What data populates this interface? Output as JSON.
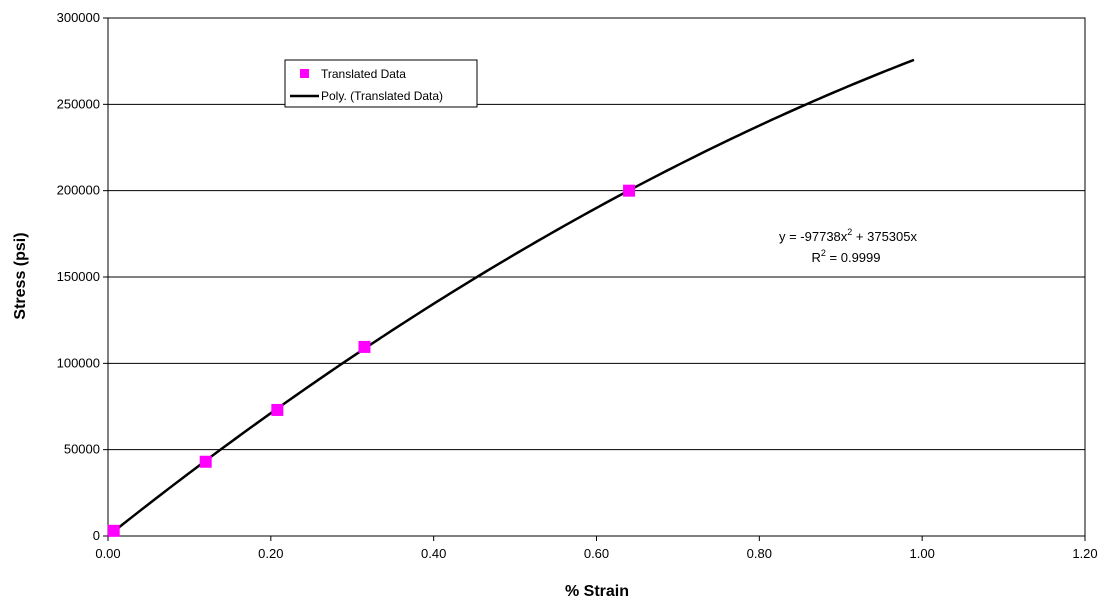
{
  "chart_data": {
    "type": "scatter",
    "title": "",
    "xlabel": "% Strain",
    "ylabel": "Stress (psi)",
    "xlim": [
      0,
      1.2
    ],
    "ylim": [
      0,
      300000
    ],
    "x_ticks": [
      0,
      0.2,
      0.4,
      0.6,
      0.8,
      1.0,
      1.2
    ],
    "x_tick_labels": [
      "0.00",
      "0.20",
      "0.40",
      "0.60",
      "0.80",
      "1.00",
      "1.20"
    ],
    "y_ticks": [
      0,
      50000,
      100000,
      150000,
      200000,
      250000,
      300000
    ],
    "y_tick_labels": [
      "0",
      "50000",
      "100000",
      "150000",
      "200000",
      "250000",
      "300000"
    ],
    "grid": "horizontal major gridlines",
    "series": [
      {
        "name": "Translated Data",
        "kind": "scatter",
        "marker": "square",
        "color": "#ff00ff",
        "points": [
          {
            "x": 0.007,
            "y": 3000
          },
          {
            "x": 0.12,
            "y": 43000
          },
          {
            "x": 0.208,
            "y": 73000
          },
          {
            "x": 0.315,
            "y": 109500
          },
          {
            "x": 0.64,
            "y": 200000
          }
        ]
      },
      {
        "name": "Poly. (Translated Data)",
        "kind": "trendline",
        "color": "#000000",
        "fit": {
          "a2": -97738,
          "a1": 375305,
          "a0": 0
        },
        "x_range": [
          0,
          0.99
        ]
      }
    ],
    "legend": {
      "placement": "top-left inside plot area",
      "entries": [
        "Translated Data",
        "Poly. (Translated Data)"
      ]
    },
    "annotation": {
      "equation_base": "y = -97738x",
      "equation_sup": "2",
      "equation_rest": " + 375305x",
      "r2_base": "R",
      "r2_sup": "2",
      "r2_rest": " = 0.9999"
    }
  }
}
